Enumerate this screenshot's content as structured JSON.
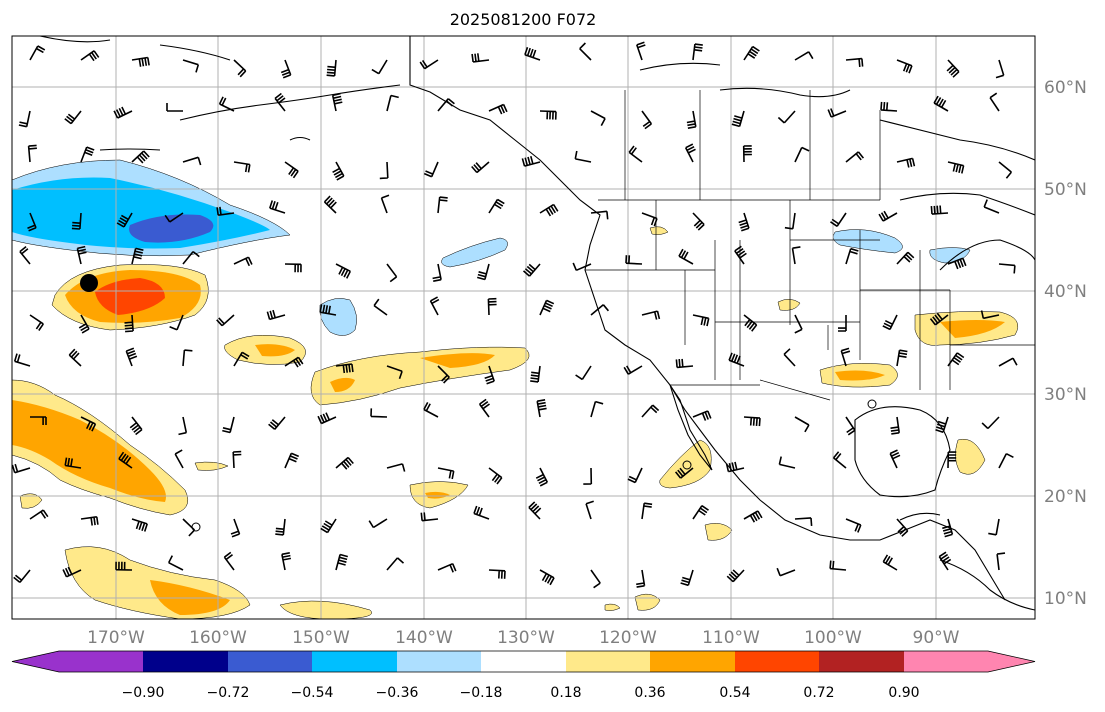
{
  "title": "2025081200 F072",
  "longitude_labels": [
    "170°W",
    "160°W",
    "150°W",
    "140°W",
    "130°W",
    "120°W",
    "110°W",
    "100°W",
    "90°W"
  ],
  "latitude_labels": [
    "60°N",
    "50°N",
    "40°N",
    "30°N",
    "20°N",
    "10°N"
  ],
  "colorbar": {
    "tick_labels": [
      "−0.90",
      "−0.72",
      "−0.54",
      "−0.36",
      "−0.18",
      "0.18",
      "0.36",
      "0.54",
      "0.72",
      "0.90"
    ],
    "colors": [
      "#9932CC",
      "#00008B",
      "#3A5BD1",
      "#00BFFF",
      "#ADDFFF",
      "#FFFFFF",
      "#FFE98A",
      "#FFA500",
      "#FF4500",
      "#B22222",
      "#FF85B0"
    ],
    "extend": "both"
  },
  "style": {
    "grid_color": "#b0b0b0",
    "coast_color": "#000000"
  }
}
